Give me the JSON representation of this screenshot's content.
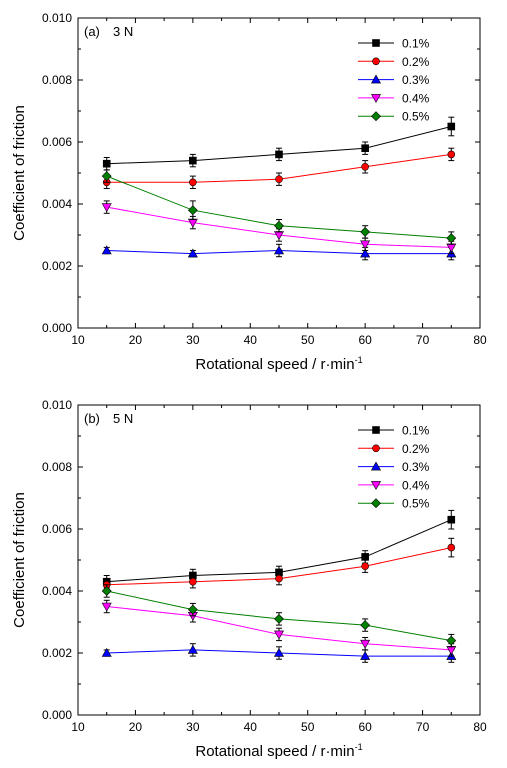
{
  "xlabel": "Rotational speed / r·min",
  "xlabel_sup": "-1",
  "ylabel": "Coefficient of friction",
  "series_styles": [
    {
      "name": "0.1%",
      "color": "#000000",
      "marker": "square"
    },
    {
      "name": "0.2%",
      "color": "#ff0000",
      "marker": "circle"
    },
    {
      "name": "0.3%",
      "color": "#0000ff",
      "marker": "triangle-up"
    },
    {
      "name": "0.4%",
      "color": "#ff00ff",
      "marker": "triangle-down"
    },
    {
      "name": "0.5%",
      "color": "#008000",
      "marker": "diamond"
    }
  ],
  "chart_data": [
    {
      "type": "line",
      "panel_label": "(a)",
      "load_label": "3 N",
      "x": [
        15,
        30,
        45,
        60,
        75
      ],
      "xlim": [
        10,
        80
      ],
      "xticks": [
        "10",
        "20",
        "30",
        "40",
        "50",
        "60",
        "70",
        "80"
      ],
      "ylim": [
        0,
        0.01
      ],
      "yticks": [
        "0.000",
        "0.002",
        "0.004",
        "0.006",
        "0.008",
        "0.010"
      ],
      "legend_position": "top-right",
      "series": [
        {
          "name": "0.1%",
          "values": [
            0.0053,
            0.0054,
            0.0056,
            0.0058,
            0.0065
          ],
          "errors": [
            0.0002,
            0.0002,
            0.0002,
            0.0002,
            0.0003
          ]
        },
        {
          "name": "0.2%",
          "values": [
            0.0047,
            0.0047,
            0.0048,
            0.0052,
            0.0056
          ],
          "errors": [
            0.0002,
            0.0002,
            0.0002,
            0.0002,
            0.0002
          ]
        },
        {
          "name": "0.3%",
          "values": [
            0.0025,
            0.0024,
            0.0025,
            0.0024,
            0.0024
          ],
          "errors": [
            0.0001,
            0.0001,
            0.0002,
            0.0002,
            0.0002
          ]
        },
        {
          "name": "0.4%",
          "values": [
            0.0039,
            0.0034,
            0.003,
            0.0027,
            0.0026
          ],
          "errors": [
            0.0002,
            0.0002,
            0.0002,
            0.0002,
            0.0002
          ]
        },
        {
          "name": "0.5%",
          "values": [
            0.0049,
            0.0038,
            0.0033,
            0.0031,
            0.0029
          ],
          "errors": [
            0.0002,
            0.0003,
            0.0002,
            0.0002,
            0.0002
          ]
        }
      ]
    },
    {
      "type": "line",
      "panel_label": "(b)",
      "load_label": "5 N",
      "x": [
        15,
        30,
        45,
        60,
        75
      ],
      "xlim": [
        10,
        80
      ],
      "xticks": [
        "10",
        "20",
        "30",
        "40",
        "50",
        "60",
        "70",
        "80"
      ],
      "ylim": [
        0,
        0.01
      ],
      "yticks": [
        "0.000",
        "0.002",
        "0.004",
        "0.006",
        "0.008",
        "0.010"
      ],
      "legend_position": "top-right",
      "series": [
        {
          "name": "0.1%",
          "values": [
            0.0043,
            0.0045,
            0.0046,
            0.0051,
            0.0063
          ],
          "errors": [
            0.0002,
            0.0002,
            0.0002,
            0.0002,
            0.0003
          ]
        },
        {
          "name": "0.2%",
          "values": [
            0.0042,
            0.0043,
            0.0044,
            0.0048,
            0.0054
          ],
          "errors": [
            0.0002,
            0.0002,
            0.0002,
            0.0002,
            0.0003
          ]
        },
        {
          "name": "0.3%",
          "values": [
            0.002,
            0.0021,
            0.002,
            0.0019,
            0.0019
          ],
          "errors": [
            0.0001,
            0.0002,
            0.0002,
            0.0002,
            0.0002
          ]
        },
        {
          "name": "0.4%",
          "values": [
            0.0035,
            0.0032,
            0.0026,
            0.0023,
            0.0021
          ],
          "errors": [
            0.0002,
            0.0002,
            0.0002,
            0.0002,
            0.0002
          ]
        },
        {
          "name": "0.5%",
          "values": [
            0.004,
            0.0034,
            0.0031,
            0.0029,
            0.0024
          ],
          "errors": [
            0.0002,
            0.0002,
            0.0002,
            0.0002,
            0.0002
          ]
        }
      ]
    }
  ]
}
